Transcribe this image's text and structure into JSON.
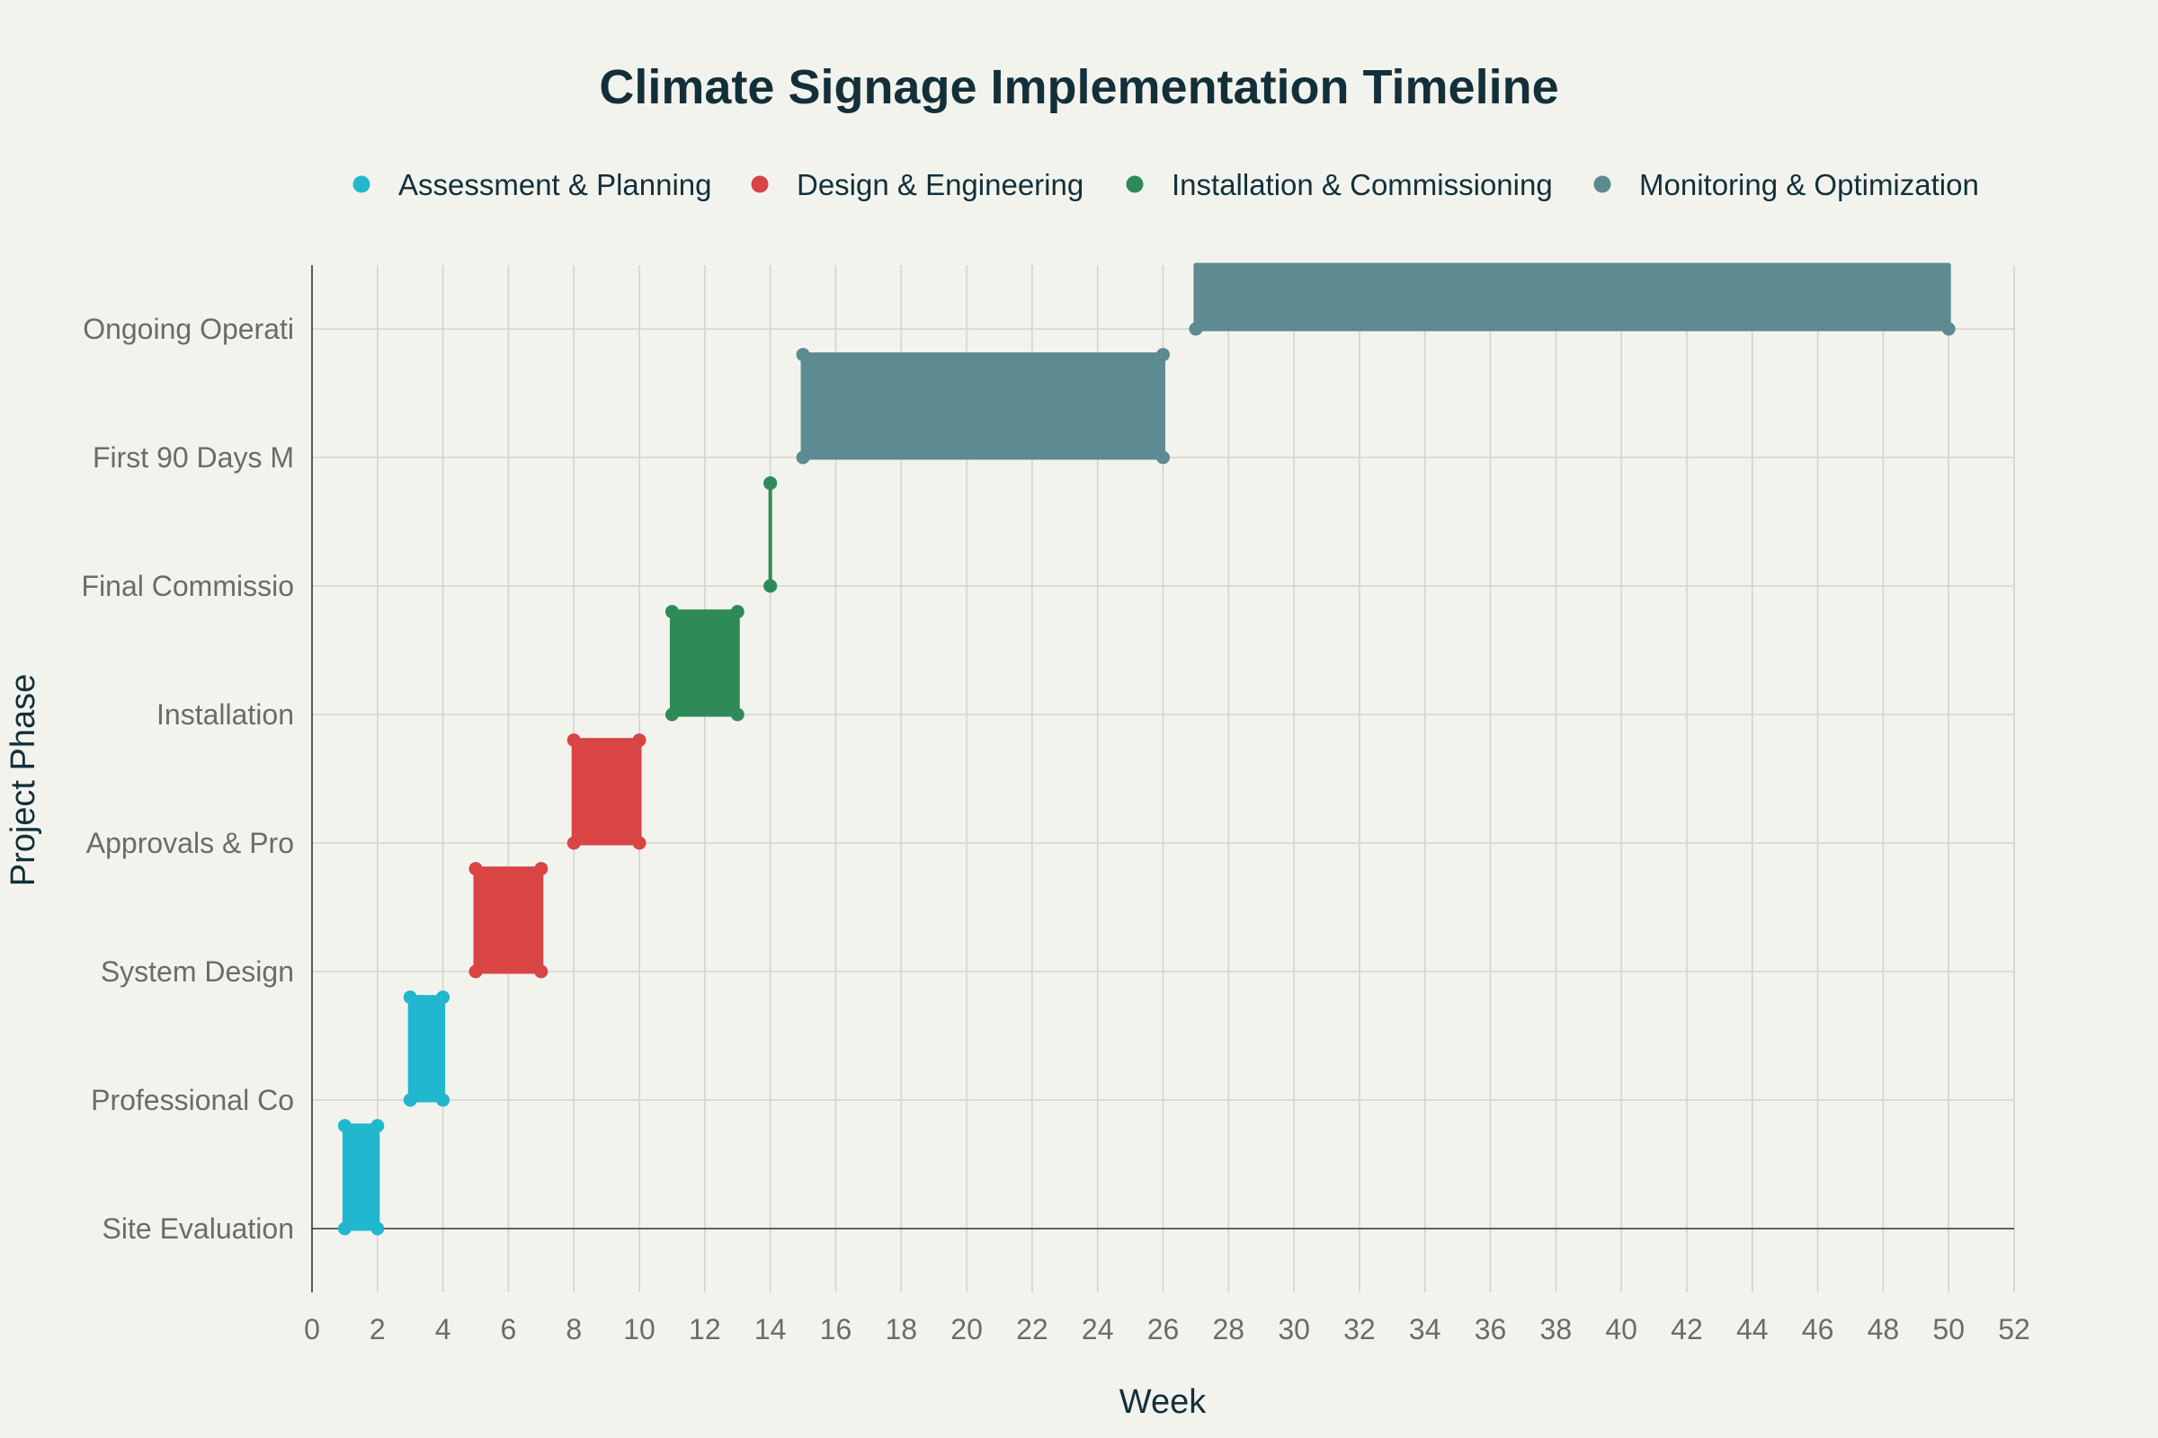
{
  "chart_data": {
    "type": "gantt",
    "title": "Climate Signage Implementation Timeline",
    "xlabel": "Week",
    "ylabel": "Project Phase",
    "xlim": [
      0,
      52
    ],
    "xticks": [
      0,
      2,
      4,
      6,
      8,
      10,
      12,
      14,
      16,
      18,
      20,
      22,
      24,
      26,
      28,
      30,
      32,
      34,
      36,
      38,
      40,
      42,
      44,
      46,
      48,
      50,
      52
    ],
    "grid": true,
    "legend_position": "top",
    "categories": [
      {
        "name": "Assessment & Planning",
        "color": "#21b8cf"
      },
      {
        "name": "Design & Engineering",
        "color": "#d94444"
      },
      {
        "name": "Installation & Commissioning",
        "color": "#2e8b57"
      },
      {
        "name": "Monitoring & Optimization",
        "color": "#5e8a91"
      }
    ],
    "tasks": [
      {
        "label": "Site Evaluation",
        "start": 1,
        "end": 2,
        "category": "Assessment & Planning"
      },
      {
        "label": "Professional Co",
        "start": 3,
        "end": 4,
        "category": "Assessment & Planning"
      },
      {
        "label": "System Design",
        "start": 5,
        "end": 7,
        "category": "Design & Engineering"
      },
      {
        "label": "Approvals & Pro",
        "start": 8,
        "end": 10,
        "category": "Design & Engineering"
      },
      {
        "label": "Installation",
        "start": 11,
        "end": 13,
        "category": "Installation & Commissioning"
      },
      {
        "label": "Final Commissio",
        "start": 14,
        "end": 14,
        "category": "Installation & Commissioning"
      },
      {
        "label": "First 90 Days M",
        "start": 15,
        "end": 26,
        "category": "Monitoring & Optimization"
      },
      {
        "label": "Ongoing Operati",
        "start": 27,
        "end": 50,
        "category": "Monitoring & Optimization"
      }
    ]
  }
}
